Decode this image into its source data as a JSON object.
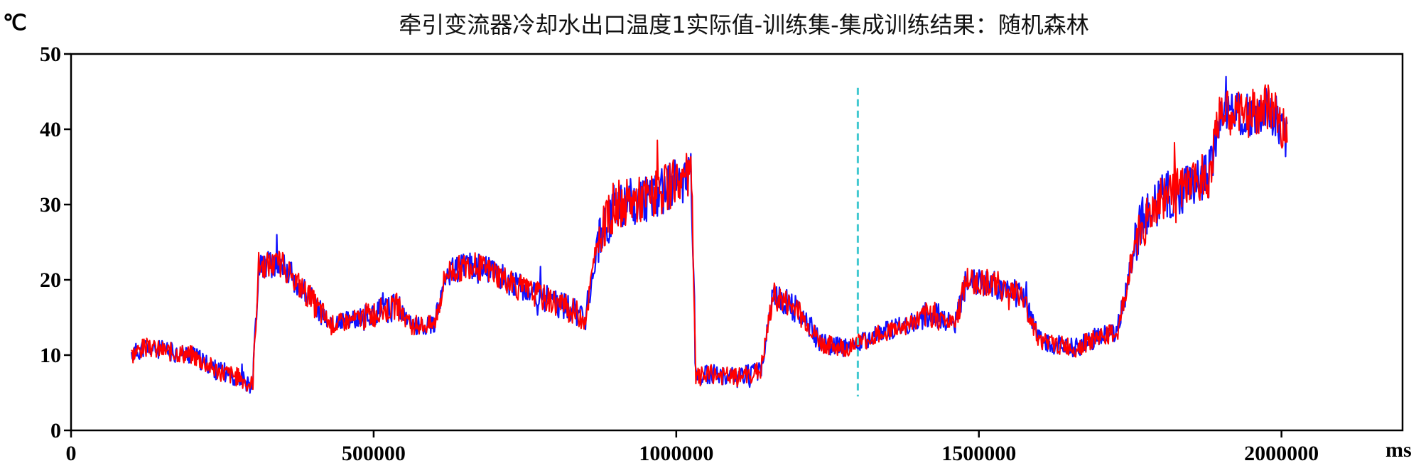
{
  "chart_data": {
    "type": "line",
    "title": "牵引变流器冷却水出口温度1实际值-训练集-集成训练结果：随机森林",
    "ylabel": "℃",
    "xlabel": "ms",
    "xlim": [
      0,
      2200000
    ],
    "ylim": [
      0,
      50
    ],
    "x_ticks": [
      0,
      500000,
      1000000,
      1500000,
      2000000
    ],
    "x_tick_labels": [
      "0",
      "500000",
      "1000000",
      "1500000",
      "2000000"
    ],
    "y_ticks": [
      0,
      10,
      20,
      30,
      40,
      50
    ],
    "y_tick_labels": [
      "0",
      "10",
      "20",
      "30",
      "40",
      "50"
    ],
    "grid": false,
    "legend": "none",
    "vertical_marker": {
      "x": 1300000,
      "y_range": [
        4.5,
        45.5
      ],
      "color": "#40c8d0",
      "style": "dashed"
    },
    "series": [
      {
        "color": "#1010ff",
        "x": [
          100000,
          120000,
          160000,
          200000,
          240000,
          280000,
          300000,
          310000,
          350000,
          400000,
          430000,
          480000,
          540000,
          560000,
          600000,
          620000,
          660000,
          700000,
          740000,
          800000,
          850000,
          870000,
          900000,
          960000,
          1000000,
          1025000,
          1032000,
          1060000,
          1100000,
          1140000,
          1160000,
          1200000,
          1240000,
          1280000,
          1300000,
          1340000,
          1380000,
          1420000,
          1460000,
          1480000,
          1520000,
          1570000,
          1600000,
          1620000,
          1660000,
          1700000,
          1730000,
          1760000,
          1800000,
          1840000,
          1880000,
          1900000,
          1940000,
          1980000,
          2010000
        ],
        "y": [
          10,
          11,
          10.5,
          10,
          8,
          7,
          6,
          22,
          22,
          17,
          14,
          15,
          16.5,
          14,
          14,
          21,
          22,
          21,
          19,
          17,
          15,
          25,
          30,
          31,
          33,
          34,
          7,
          7.5,
          7,
          8,
          18,
          16,
          11.5,
          11,
          11.5,
          13,
          14,
          15.5,
          14,
          20,
          19.5,
          18,
          12,
          11.5,
          11,
          12.5,
          13,
          26,
          31,
          32,
          34,
          42,
          42,
          43,
          39
        ]
      },
      {
        "color": "#ff0000",
        "x": [
          100000,
          120000,
          160000,
          200000,
          240000,
          280000,
          300000,
          310000,
          350000,
          400000,
          430000,
          480000,
          540000,
          560000,
          600000,
          620000,
          660000,
          700000,
          740000,
          800000,
          850000,
          870000,
          900000,
          960000,
          1000000,
          1025000,
          1032000,
          1060000,
          1100000,
          1140000,
          1160000,
          1200000,
          1240000,
          1280000,
          1300000,
          1340000,
          1380000,
          1420000,
          1460000,
          1480000,
          1520000,
          1570000,
          1600000,
          1620000,
          1660000,
          1700000,
          1730000,
          1760000,
          1800000,
          1840000,
          1880000,
          1900000,
          1940000,
          1980000,
          2010000
        ],
        "y": [
          10,
          11,
          10.5,
          10,
          8,
          7,
          6,
          22,
          22,
          17,
          14,
          15,
          16.5,
          14,
          14,
          21,
          22,
          21,
          19,
          17,
          15,
          25,
          30,
          31,
          33,
          34,
          7,
          7.5,
          7,
          8,
          18,
          16,
          11.5,
          11,
          11.5,
          13,
          14,
          15.5,
          14,
          20,
          19.5,
          18,
          12,
          11.5,
          11,
          12.5,
          13,
          26,
          31,
          32,
          34,
          42,
          42,
          43,
          39
        ]
      }
    ]
  }
}
